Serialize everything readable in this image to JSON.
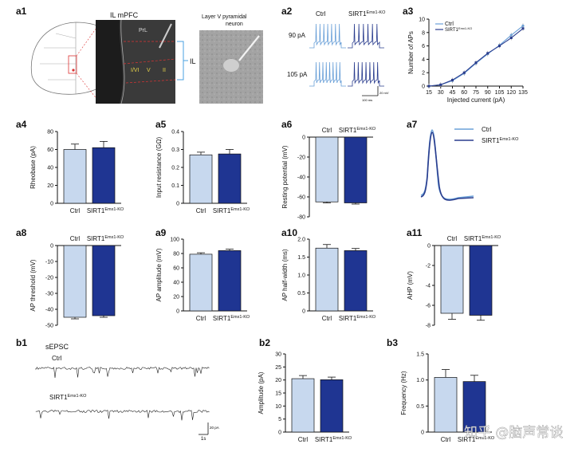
{
  "colors": {
    "ctrl": "#c7d8ee",
    "ko": "#1f3592",
    "ctrl_line": "#6aa0d8",
    "ko_line": "#2a3d8e"
  },
  "labels": {
    "a1": "a1",
    "a2": "a2",
    "a3": "a3",
    "a4": "a4",
    "a5": "a5",
    "a6": "a6",
    "a7": "a7",
    "a8": "a8",
    "a9": "a9",
    "a10": "a10",
    "a11": "a11",
    "b1": "b1",
    "b2": "b2",
    "b3": "b3"
  },
  "a1": {
    "title": "IL mPFC",
    "prl": "PrL",
    "il": "IL",
    "iv": "I/VI",
    "v": "V",
    "ii": "II",
    "layer_title": "Layer V pyramidal neuron"
  },
  "a2": {
    "ctrl": "Ctrl",
    "ko_base": "SIRT1",
    "ko_sup": "Emx1-KO",
    "row1": "90 pA",
    "row2": "105 pA",
    "scale_v": "20 mV",
    "scale_t": "100 ms"
  },
  "legend": {
    "ctrl": "Ctrl",
    "ko_base": "SIRT1",
    "ko_sup": "Emx1-KO"
  },
  "watermark": "知乎 @脑声常谈",
  "b1": {
    "title": "sEPSC",
    "ctrl": "Ctrl",
    "ko_base": "SIRT1",
    "ko_sup": "Emx1-KO",
    "scale_i": "20 pA",
    "scale_t": "1s"
  },
  "chart_data": [
    {
      "id": "a3",
      "type": "line",
      "xlabel": "Injected current (pA)",
      "ylabel": "Number of APs",
      "x": [
        15,
        30,
        45,
        60,
        75,
        90,
        105,
        120,
        135
      ],
      "xlim": [
        15,
        135
      ],
      "ylim": [
        0,
        10
      ],
      "yticks": [
        0,
        2,
        4,
        6,
        8,
        10
      ],
      "series": [
        {
          "name": "Ctrl",
          "values": [
            0,
            0.2,
            0.8,
            1.9,
            3.4,
            4.8,
            6.1,
            7.6,
            9.0
          ]
        },
        {
          "name": "SIRT1Emx1-KO",
          "values": [
            0,
            0.2,
            0.9,
            2.0,
            3.5,
            4.9,
            6.0,
            7.2,
            8.6
          ]
        }
      ]
    },
    {
      "id": "a4",
      "type": "bar",
      "ylabel": "Rheobase (pA)",
      "categories": [
        "Ctrl",
        "SIRT1Emx1-KO"
      ],
      "values": [
        60,
        62
      ],
      "errors": [
        6,
        7
      ],
      "ylim": [
        0,
        80
      ],
      "yticks": [
        0,
        20,
        40,
        60,
        80
      ]
    },
    {
      "id": "a5",
      "type": "bar",
      "ylabel": "Input resistance (GΩ)",
      "categories": [
        "Ctrl",
        "SIRT1Emx1-KO"
      ],
      "values": [
        0.27,
        0.275
      ],
      "errors": [
        0.015,
        0.025
      ],
      "ylim": [
        0,
        0.4
      ],
      "yticks": [
        0.0,
        0.1,
        0.2,
        0.3,
        0.4
      ]
    },
    {
      "id": "a6",
      "type": "bar",
      "ylabel": "Resting potential (mV)",
      "categories": [
        "Ctrl",
        "SIRT1Emx1-KO"
      ],
      "values": [
        -65,
        -66
      ],
      "errors": [
        1,
        1.2
      ],
      "ylim": [
        -80,
        0
      ],
      "yticks": [
        0,
        -20,
        -40,
        -60,
        -80
      ]
    },
    {
      "id": "a8",
      "type": "bar",
      "ylabel": "AP threshold (mV)",
      "categories": [
        "Ctrl",
        "SIRT1Emx1-KO"
      ],
      "values": [
        -45,
        -44
      ],
      "errors": [
        1,
        1
      ],
      "ylim": [
        -50,
        0
      ],
      "yticks": [
        0,
        -10,
        -20,
        -30,
        -40,
        -50
      ]
    },
    {
      "id": "a9",
      "type": "bar",
      "ylabel": "AP amplitude (mV)",
      "categories": [
        "Ctrl",
        "SIRT1Emx1-KO"
      ],
      "values": [
        79,
        84
      ],
      "errors": [
        2,
        2
      ],
      "ylim": [
        0,
        100
      ],
      "yticks": [
        0,
        20,
        40,
        60,
        80,
        100
      ]
    },
    {
      "id": "a10",
      "type": "bar",
      "ylabel": "AP half-width (ms)",
      "categories": [
        "Ctrl",
        "SIRT1Emx1-KO"
      ],
      "values": [
        1.75,
        1.68
      ],
      "errors": [
        0.1,
        0.06
      ],
      "ylim": [
        0,
        2.0
      ],
      "yticks": [
        0.0,
        0.5,
        1.0,
        1.5,
        2.0
      ]
    },
    {
      "id": "a11",
      "type": "bar",
      "ylabel": "AHP (mV)",
      "categories": [
        "Ctrl",
        "SIRT1Emx1-KO"
      ],
      "values": [
        -6.8,
        -7.0
      ],
      "errors": [
        0.6,
        0.5
      ],
      "ylim": [
        -8,
        0
      ],
      "yticks": [
        0,
        -2,
        -4,
        -6,
        -8
      ]
    },
    {
      "id": "b2",
      "type": "bar",
      "ylabel": "Amplitude (pA)",
      "categories": [
        "Ctrl",
        "SIRT1Emx1-KO"
      ],
      "values": [
        20.5,
        20.1
      ],
      "errors": [
        1.2,
        1.0
      ],
      "ylim": [
        0,
        30
      ],
      "yticks": [
        0,
        5,
        10,
        15,
        20,
        25,
        30
      ]
    },
    {
      "id": "b3",
      "type": "bar",
      "ylabel": "Frequency (Hz)",
      "categories": [
        "Ctrl",
        "SIRT1Emx1-KO"
      ],
      "values": [
        1.05,
        0.97
      ],
      "errors": [
        0.15,
        0.12
      ],
      "ylim": [
        0,
        1.5
      ],
      "yticks": [
        0.0,
        0.5,
        1.0,
        1.5
      ]
    }
  ]
}
